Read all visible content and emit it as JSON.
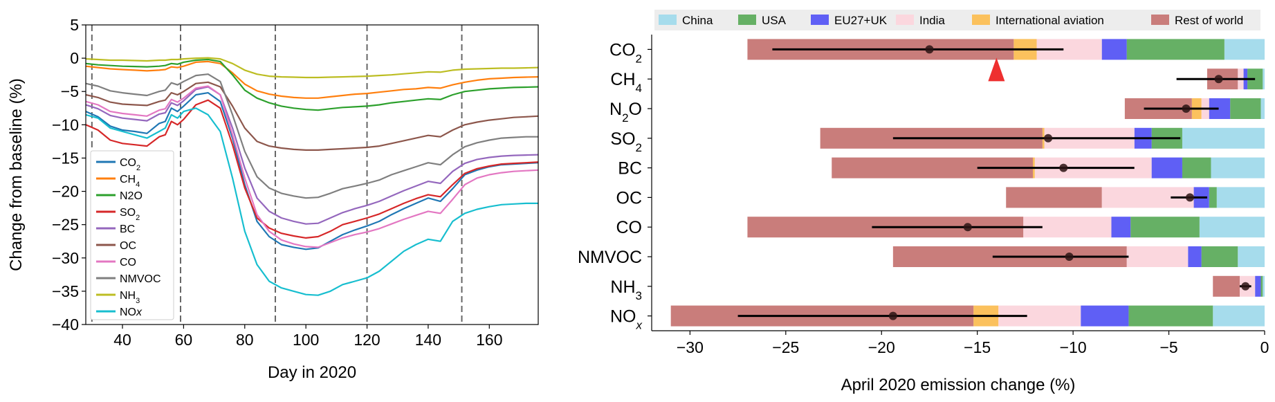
{
  "chart_data": [
    {
      "type": "line",
      "xlabel": "Day in 2020",
      "ylabel": "Change from baseline (%)",
      "xlim": [
        28,
        176
      ],
      "ylim": [
        -40,
        5
      ],
      "xticks": [
        40,
        60,
        80,
        100,
        120,
        140,
        160
      ],
      "yticks": [
        5,
        0,
        -5,
        -10,
        -15,
        -20,
        -25,
        -30,
        -35,
        -40
      ],
      "xtick_labels": [
        "40",
        "60",
        "80",
        "100",
        "120",
        "140",
        "160"
      ],
      "ytick_labels": [
        "5",
        "0",
        "−5",
        "−10",
        "−15",
        "−20",
        "−25",
        "−30",
        "−35",
        "−40"
      ],
      "vlines": [
        30,
        59,
        90,
        120,
        151
      ],
      "grid": false,
      "legend_position": "lower-left",
      "x": [
        28,
        32,
        36,
        40,
        44,
        48,
        52,
        54,
        56,
        58,
        60,
        64,
        68,
        72,
        76,
        80,
        84,
        88,
        92,
        96,
        100,
        104,
        108,
        112,
        116,
        120,
        124,
        128,
        132,
        136,
        140,
        144,
        148,
        152,
        156,
        160,
        164,
        168,
        172,
        176
      ],
      "series": [
        {
          "name": "CO2",
          "label_main": "CO",
          "label_sub": "2",
          "color": "#1f77b4",
          "values": [
            -8,
            -8.8,
            -10.2,
            -10.8,
            -11,
            -11.3,
            -9.8,
            -9.5,
            -7.5,
            -8,
            -7.2,
            -5.5,
            -5.2,
            -6.5,
            -12,
            -19,
            -24.5,
            -26.8,
            -28,
            -28.4,
            -28.7,
            -28.5,
            -27.5,
            -26.5,
            -25.8,
            -25.2,
            -24.5,
            -23.5,
            -22.6,
            -21.8,
            -21,
            -21.5,
            -19.6,
            -17.5,
            -16.8,
            -16.3,
            -16,
            -15.9,
            -15.8,
            -15.7
          ]
        },
        {
          "name": "CH4",
          "label_main": "CH",
          "label_sub": "4",
          "color": "#ff7f0e",
          "values": [
            -1.2,
            -1.4,
            -1.6,
            -1.7,
            -1.8,
            -1.9,
            -1.8,
            -1.7,
            -1.3,
            -1.4,
            -1.2,
            -0.6,
            -0.5,
            -0.8,
            -2.2,
            -3.9,
            -4.9,
            -5.4,
            -5.7,
            -5.9,
            -6,
            -6,
            -5.8,
            -5.6,
            -5.4,
            -5.3,
            -5.1,
            -4.9,
            -4.7,
            -4.6,
            -4.4,
            -4.5,
            -4,
            -3.6,
            -3.3,
            -3.1,
            -3,
            -2.9,
            -2.85,
            -2.8
          ]
        },
        {
          "name": "N2O",
          "label_main": "N2O",
          "label_sub": "",
          "color": "#2ca02c",
          "values": [
            -0.8,
            -1,
            -1.1,
            -1.2,
            -1.25,
            -1.3,
            -1.2,
            -1.1,
            -0.8,
            -0.9,
            -0.6,
            -0.3,
            -0.2,
            -0.5,
            -2.5,
            -4.8,
            -6,
            -6.7,
            -7.2,
            -7.5,
            -7.7,
            -7.8,
            -7.6,
            -7.4,
            -7.3,
            -7.2,
            -7,
            -6.7,
            -6.5,
            -6.3,
            -6.1,
            -6.2,
            -5.5,
            -5,
            -4.8,
            -4.6,
            -4.5,
            -4.4,
            -4.35,
            -4.3
          ]
        },
        {
          "name": "SO2",
          "label_main": "SO",
          "label_sub": "2",
          "color": "#d62728",
          "values": [
            -10,
            -10.8,
            -12.3,
            -12.8,
            -13,
            -13.2,
            -11.8,
            -11.5,
            -9.5,
            -10,
            -9.2,
            -7,
            -6.3,
            -7.5,
            -13,
            -19.5,
            -24,
            -25.5,
            -26.3,
            -26.7,
            -27,
            -26.8,
            -26,
            -25,
            -24.5,
            -24,
            -23.4,
            -22.6,
            -21.8,
            -21.1,
            -20.5,
            -20.8,
            -19,
            -17.3,
            -16.6,
            -16.2,
            -15.9,
            -15.8,
            -15.7,
            -15.6
          ]
        },
        {
          "name": "BC",
          "label_main": "BC",
          "label_sub": "",
          "color": "#9467bd",
          "values": [
            -7,
            -7.6,
            -8.6,
            -9,
            -9.2,
            -9.4,
            -8.4,
            -8.2,
            -6.7,
            -7.1,
            -6.4,
            -4.7,
            -4.3,
            -5.5,
            -10.5,
            -16.5,
            -21,
            -23,
            -24,
            -24.5,
            -24.9,
            -24.8,
            -24,
            -23.2,
            -22.6,
            -22.1,
            -21.5,
            -20.7,
            -19.9,
            -19.2,
            -18.5,
            -18.8,
            -17,
            -15.8,
            -15.2,
            -14.9,
            -14.7,
            -14.6,
            -14.55,
            -14.5
          ]
        },
        {
          "name": "OC",
          "label_main": "OC",
          "label_sub": "",
          "color": "#8c564b",
          "values": [
            -5.5,
            -5.9,
            -6.6,
            -6.9,
            -7,
            -7.1,
            -6.5,
            -6.3,
            -5.2,
            -5.5,
            -5,
            -3.8,
            -3.6,
            -4.3,
            -7.2,
            -10.5,
            -12.5,
            -13.2,
            -13.5,
            -13.7,
            -13.8,
            -13.8,
            -13.7,
            -13.6,
            -13.5,
            -13.4,
            -13.2,
            -12.8,
            -12.4,
            -12,
            -11.6,
            -11.8,
            -10.8,
            -10,
            -9.6,
            -9.3,
            -9.1,
            -8.9,
            -8.8,
            -8.7
          ]
        },
        {
          "name": "CO",
          "label_main": "CO",
          "label_sub": "",
          "color": "#e377c2",
          "values": [
            -6.5,
            -7,
            -8,
            -8.3,
            -8.5,
            -8.7,
            -7.8,
            -7.6,
            -6.2,
            -6.6,
            -6,
            -4.5,
            -4.2,
            -5.5,
            -11.5,
            -18,
            -23.5,
            -26,
            -27.3,
            -27.9,
            -28.3,
            -28.4,
            -27.7,
            -27,
            -26.5,
            -26.1,
            -25.6,
            -24.9,
            -24.2,
            -23.6,
            -23,
            -23.3,
            -21.2,
            -19,
            -18,
            -17.5,
            -17.2,
            -17,
            -16.9,
            -16.8
          ]
        },
        {
          "name": "NMVOC",
          "label_main": "NMVOC",
          "label_sub": "",
          "color": "#7f7f7f",
          "values": [
            -3.8,
            -4.2,
            -4.9,
            -5.2,
            -5.4,
            -5.6,
            -5,
            -4.8,
            -3.7,
            -4,
            -3.5,
            -2.6,
            -2.4,
            -3.5,
            -8.5,
            -14,
            -17.8,
            -19.5,
            -20.3,
            -20.7,
            -21,
            -20.9,
            -20.3,
            -19.6,
            -19.2,
            -18.8,
            -18.3,
            -17.5,
            -16.9,
            -16.3,
            -15.7,
            -16,
            -14.5,
            -13.3,
            -12.7,
            -12.3,
            -12,
            -11.9,
            -11.8,
            -11.8
          ]
        },
        {
          "name": "NH3",
          "label_main": "NH",
          "label_sub": "3",
          "color": "#bcbd22",
          "values": [
            -0.1,
            -0.2,
            -0.3,
            -0.3,
            -0.35,
            -0.4,
            -0.3,
            -0.3,
            -0.2,
            -0.2,
            -0.1,
            0,
            0.05,
            -0.1,
            -0.8,
            -1.8,
            -2.4,
            -2.7,
            -2.8,
            -2.85,
            -2.9,
            -2.9,
            -2.85,
            -2.8,
            -2.75,
            -2.7,
            -2.6,
            -2.5,
            -2.35,
            -2.2,
            -2.05,
            -2.1,
            -1.8,
            -1.65,
            -1.6,
            -1.55,
            -1.5,
            -1.5,
            -1.45,
            -1.4
          ]
        },
        {
          "name": "NOx",
          "label_main": "NO",
          "label_sub": "x",
          "color": "#17becf",
          "values": [
            -8.5,
            -9,
            -10.5,
            -11,
            -11.5,
            -12,
            -11,
            -10.5,
            -8.5,
            -9,
            -8,
            -7.5,
            -8.5,
            -11,
            -18,
            -26,
            -31,
            -33.5,
            -34.5,
            -35,
            -35.5,
            -35.6,
            -35,
            -34,
            -33.5,
            -33,
            -32,
            -30.5,
            -29,
            -28,
            -27.2,
            -27.5,
            -24.5,
            -23.3,
            -22.7,
            -22.3,
            -22,
            -21.9,
            -21.8,
            -21.8
          ]
        }
      ]
    },
    {
      "type": "bar",
      "stacked": true,
      "orientation": "horizontal",
      "xlabel": "April 2020 emission change (%)",
      "xlim": [
        -32,
        0
      ],
      "xticks": [
        -30,
        -25,
        -20,
        -15,
        -10,
        -5,
        0
      ],
      "xtick_labels": [
        "−30",
        "−25",
        "−20",
        "−15",
        "−10",
        "−5",
        "0"
      ],
      "legend_position": "top",
      "categories": [
        "CO2",
        "CH4",
        "N2O",
        "SO2",
        "BC",
        "OC",
        "CO",
        "NMVOC",
        "NH3",
        "NOx"
      ],
      "category_labels": [
        {
          "main": "CO",
          "sub": "2",
          "subitalic": false
        },
        {
          "main": "CH",
          "sub": "4",
          "subitalic": false
        },
        {
          "main": "N",
          "sub": "2",
          "after": "O",
          "subitalic": false
        },
        {
          "main": "SO",
          "sub": "2",
          "subitalic": false
        },
        {
          "main": "BC",
          "sub": "",
          "subitalic": false
        },
        {
          "main": "OC",
          "sub": "",
          "subitalic": false
        },
        {
          "main": "CO",
          "sub": "",
          "subitalic": false
        },
        {
          "main": "NMVOC",
          "sub": "",
          "subitalic": false
        },
        {
          "main": "NH",
          "sub": "3",
          "subitalic": false
        },
        {
          "main": "NO",
          "sub": "x",
          "subitalic": true
        }
      ],
      "series": [
        {
          "name": "China",
          "color": "#a6dcec",
          "values": [
            -2.1,
            -0.1,
            -0.2,
            -4.3,
            -2.8,
            -2.5,
            -3.4,
            -1.4,
            -0.1,
            -2.7
          ]
        },
        {
          "name": "USA",
          "color": "#66b065",
          "values": [
            -5.1,
            -0.8,
            -1.6,
            -1.6,
            -1.5,
            -0.4,
            -3.6,
            -1.9,
            -0.1,
            -4.4
          ]
        },
        {
          "name": "EU27+UK",
          "color": "#5f5ff5",
          "values": [
            -1.3,
            -0.2,
            -1.1,
            -0.9,
            -1.6,
            -0.8,
            -1,
            -0.7,
            -0.3,
            -2.5
          ]
        },
        {
          "name": "India",
          "color": "#fbd7de",
          "values": [
            -3.4,
            -0.3,
            -0.4,
            -4.7,
            -6.1,
            -4.8,
            -4.6,
            -3.2,
            -0.8,
            -4.3
          ]
        },
        {
          "name": "International aviation",
          "color": "#fbc15d",
          "values": [
            -1.2,
            0,
            -0.5,
            -0.1,
            -0.1,
            0,
            0,
            0,
            0,
            -1.3
          ]
        },
        {
          "name": "Rest of world",
          "color": "#c97d7b",
          "values": [
            -13.9,
            -1.6,
            -3.5,
            -11.6,
            -10.5,
            -5,
            -14.4,
            -12.2,
            -1.4,
            -15.8
          ]
        }
      ],
      "means": [
        -17.5,
        -2.4,
        -4.1,
        -11.3,
        -10.5,
        -3.9,
        -15.5,
        -10.2,
        -1,
        -19.4
      ],
      "error_low": [
        -25.7,
        -4.6,
        -6.3,
        -19.4,
        -15,
        -4.9,
        -20.5,
        -14.2,
        -1.3,
        -27.5
      ],
      "error_high": [
        -10.5,
        -0.5,
        -2.4,
        -4.4,
        -6.8,
        -3,
        -11.6,
        -7.1,
        -0.7,
        -12.4
      ],
      "marker": {
        "category": "CO2",
        "x": -14,
        "color": "#ee2f2f",
        "shape": "triangle-up"
      }
    }
  ]
}
